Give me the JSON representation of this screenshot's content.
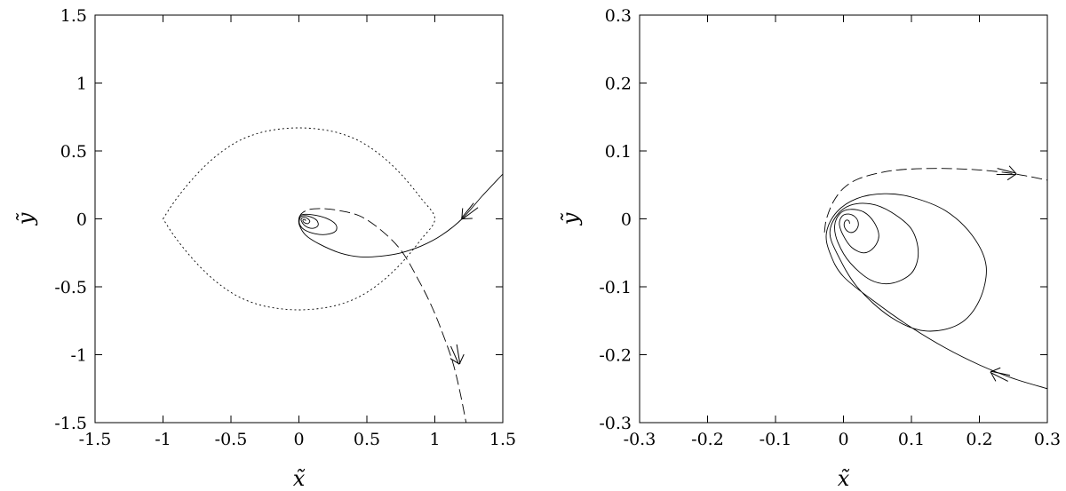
{
  "chart_data": [
    {
      "type": "line",
      "title": "",
      "xlabel": "x̃",
      "ylabel": "ỹ",
      "xlim": [
        -1.5,
        1.5
      ],
      "ylim": [
        -1.5,
        1.5
      ],
      "xticks": [
        "-1.5",
        "-1",
        "-0.5",
        "0",
        "0.5",
        "1",
        "1.5"
      ],
      "yticks": [
        "-1.5",
        "-1",
        "-0.5",
        "0",
        "0.5",
        "1",
        "1.5"
      ],
      "grid": false,
      "legend": "none",
      "series": [
        {
          "style": "solid",
          "points": [
            [
              1.5,
              0.33
            ],
            [
              1.35,
              0.17
            ],
            [
              1.2,
              0.0
            ],
            [
              1.05,
              -0.12
            ],
            [
              0.9,
              -0.2
            ],
            [
              0.75,
              -0.25
            ],
            [
              0.6,
              -0.275
            ],
            [
              0.45,
              -0.28
            ],
            [
              0.3,
              -0.25
            ],
            [
              0.15,
              -0.185
            ],
            [
              0.05,
              -0.12
            ],
            [
              0.005,
              -0.05
            ],
            [
              0.0,
              0.0
            ],
            [
              0.02,
              0.03
            ],
            [
              0.1,
              0.03
            ],
            [
              0.2,
              0.005
            ],
            [
              0.27,
              -0.04
            ],
            [
              0.27,
              -0.09
            ],
            [
              0.2,
              -0.115
            ],
            [
              0.12,
              -0.11
            ],
            [
              0.04,
              -0.08
            ],
            [
              0.005,
              -0.04
            ],
            [
              0.005,
              0.0
            ],
            [
              0.02,
              0.02
            ],
            [
              0.07,
              0.02
            ],
            [
              0.13,
              -0.01
            ],
            [
              0.14,
              -0.05
            ],
            [
              0.1,
              -0.07
            ],
            [
              0.05,
              -0.055
            ],
            [
              0.02,
              -0.02
            ],
            [
              0.02,
              0.005
            ],
            [
              0.05,
              0.01
            ],
            [
              0.08,
              -0.015
            ],
            [
              0.065,
              -0.035
            ],
            [
              0.035,
              -0.025
            ],
            [
              0.03,
              -0.008
            ],
            [
              0.045,
              -0.005
            ],
            [
              0.05,
              -0.015
            ]
          ],
          "arrows": [
            [
              1.25,
              0.05,
              "toward-center"
            ]
          ]
        },
        {
          "style": "dashed",
          "points": [
            [
              0.0,
              0.0
            ],
            [
              0.02,
              0.04
            ],
            [
              0.08,
              0.07
            ],
            [
              0.18,
              0.075
            ],
            [
              0.3,
              0.06
            ],
            [
              0.45,
              0.02
            ],
            [
              0.6,
              -0.08
            ],
            [
              0.75,
              -0.23
            ],
            [
              0.88,
              -0.45
            ],
            [
              0.98,
              -0.65
            ],
            [
              1.06,
              -0.85
            ],
            [
              1.13,
              -1.05
            ],
            [
              1.18,
              -1.25
            ],
            [
              1.23,
              -1.5
            ]
          ],
          "arrows": [
            [
              1.16,
              -1.0,
              "outward"
            ]
          ]
        },
        {
          "style": "dotted",
          "points": [
            [
              -1.0,
              0.0
            ],
            [
              -0.9,
              0.15
            ],
            [
              -0.75,
              0.33
            ],
            [
              -0.6,
              0.47
            ],
            [
              -0.45,
              0.57
            ],
            [
              -0.3,
              0.63
            ],
            [
              -0.15,
              0.66
            ],
            [
              0.0,
              0.67
            ],
            [
              0.15,
              0.66
            ],
            [
              0.3,
              0.63
            ],
            [
              0.45,
              0.57
            ],
            [
              0.6,
              0.47
            ],
            [
              0.75,
              0.33
            ],
            [
              0.9,
              0.15
            ],
            [
              1.0,
              0.0
            ],
            [
              0.9,
              -0.15
            ],
            [
              0.75,
              -0.33
            ],
            [
              0.6,
              -0.47
            ],
            [
              0.45,
              -0.57
            ],
            [
              0.3,
              -0.63
            ],
            [
              0.15,
              -0.66
            ],
            [
              0.0,
              -0.67
            ],
            [
              -0.15,
              -0.66
            ],
            [
              -0.3,
              -0.63
            ],
            [
              -0.45,
              -0.57
            ],
            [
              -0.6,
              -0.47
            ],
            [
              -0.75,
              -0.33
            ],
            [
              -0.9,
              -0.15
            ],
            [
              -1.0,
              0.0
            ]
          ]
        }
      ]
    },
    {
      "type": "line",
      "title": "",
      "xlabel": "x̃",
      "ylabel": "ỹ",
      "xlim": [
        -0.3,
        0.3
      ],
      "ylim": [
        -0.3,
        0.3
      ],
      "xticks": [
        "-0.3",
        "-0.2",
        "-0.1",
        "0",
        "0.1",
        "0.2",
        "0.3"
      ],
      "yticks": [
        "-0.3",
        "-0.2",
        "-0.1",
        "0",
        "0.1",
        "0.2",
        "0.3"
      ],
      "grid": false,
      "legend": "none",
      "series": [
        {
          "style": "solid",
          "points": [
            [
              0.3,
              -0.25
            ],
            [
              0.25,
              -0.235
            ],
            [
              0.2,
              -0.215
            ],
            [
              0.15,
              -0.19
            ],
            [
              0.1,
              -0.16
            ],
            [
              0.05,
              -0.125
            ],
            [
              0.0,
              -0.085
            ],
            [
              -0.02,
              -0.05
            ],
            [
              -0.025,
              -0.02
            ],
            [
              -0.01,
              0.01
            ],
            [
              0.02,
              0.03
            ],
            [
              0.06,
              0.037
            ],
            [
              0.1,
              0.032
            ],
            [
              0.15,
              0.012
            ],
            [
              0.19,
              -0.025
            ],
            [
              0.21,
              -0.07
            ],
            [
              0.2,
              -0.12
            ],
            [
              0.17,
              -0.155
            ],
            [
              0.12,
              -0.165
            ],
            [
              0.07,
              -0.145
            ],
            [
              0.02,
              -0.1
            ],
            [
              -0.01,
              -0.05
            ],
            [
              -0.02,
              -0.02
            ],
            [
              -0.01,
              0.005
            ],
            [
              0.01,
              0.02
            ],
            [
              0.04,
              0.022
            ],
            [
              0.07,
              0.01
            ],
            [
              0.1,
              -0.015
            ],
            [
              0.11,
              -0.05
            ],
            [
              0.1,
              -0.08
            ],
            [
              0.07,
              -0.095
            ],
            [
              0.04,
              -0.09
            ],
            [
              0.01,
              -0.065
            ],
            [
              -0.008,
              -0.035
            ],
            [
              -0.013,
              -0.01
            ],
            [
              -0.005,
              0.008
            ],
            [
              0.01,
              0.014
            ],
            [
              0.03,
              0.01
            ],
            [
              0.045,
              -0.005
            ],
            [
              0.052,
              -0.025
            ],
            [
              0.045,
              -0.042
            ],
            [
              0.03,
              -0.05
            ],
            [
              0.012,
              -0.042
            ],
            [
              0.0,
              -0.025
            ],
            [
              -0.006,
              -0.008
            ],
            [
              -0.002,
              0.004
            ],
            [
              0.008,
              0.007
            ],
            [
              0.018,
              0.002
            ],
            [
              0.022,
              -0.008
            ],
            [
              0.018,
              -0.017
            ],
            [
              0.01,
              -0.02
            ],
            [
              0.003,
              -0.015
            ],
            [
              0.001,
              -0.007
            ],
            [
              0.004,
              -0.002
            ],
            [
              0.008,
              -0.003
            ],
            [
              0.009,
              -0.007
            ]
          ],
          "arrows": [
            [
              0.23,
              -0.23,
              "toward-center"
            ]
          ]
        },
        {
          "style": "dashed",
          "points": [
            [
              -0.028,
              -0.02
            ],
            [
              -0.025,
              0.0
            ],
            [
              -0.015,
              0.025
            ],
            [
              0.0,
              0.045
            ],
            [
              0.02,
              0.058
            ],
            [
              0.05,
              0.067
            ],
            [
              0.08,
              0.072
            ],
            [
              0.12,
              0.074
            ],
            [
              0.16,
              0.074
            ],
            [
              0.2,
              0.072
            ],
            [
              0.24,
              0.068
            ],
            [
              0.27,
              0.063
            ],
            [
              0.3,
              0.057
            ]
          ],
          "arrows": [
            [
              0.24,
              0.068,
              "outward"
            ]
          ]
        }
      ]
    }
  ]
}
